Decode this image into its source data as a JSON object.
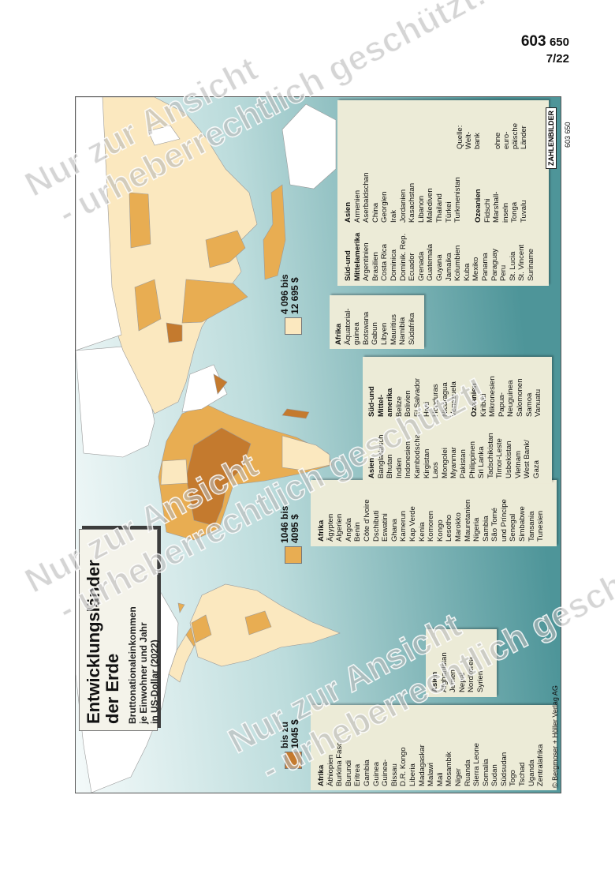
{
  "header": {
    "number": "603",
    "number_suffix": "650",
    "issue": "7/22"
  },
  "title": "Entwicklungsländer der Erde",
  "subtitle": "Bruttonationaleinkommen\nje Einwohner und Jahr\nin US-Dollar (2022)",
  "groups": [
    {
      "label": "bis zu\n1045 $",
      "color": "#c47a2e",
      "sections": [
        {
          "heading": "Afrika",
          "items": [
            "Äthiopien",
            "Burkina Faso",
            "Burundi",
            "Eritrea",
            "Gambia",
            "Guinea",
            "Guinea-\nBissau",
            "D.R. Kongo",
            "Liberia",
            "Madagaskar",
            "Malawi",
            "Mali",
            "Mosambik",
            "Niger",
            "Ruanda",
            "Sierra Leone",
            "Somalia",
            "Sudan",
            "Südsudan",
            "Togo",
            "Tschad",
            "Uganda",
            "Zentralafrika"
          ]
        },
        {
          "heading": "Asien",
          "items": [
            "Afghanistan",
            "Jemen",
            "Nepal",
            "Nordkorea",
            "Syrien"
          ]
        }
      ]
    },
    {
      "label": "1046 bis\n4095 $",
      "color": "#e8ad52",
      "sections": [
        {
          "heading": "Afrika",
          "items": [
            "Ägypten",
            "Algerien",
            "Angola",
            "Benin",
            "Côte d'Ivoire",
            "Dschibuti",
            "Eswatini",
            "Ghana",
            "Kamerun",
            "Kap Verde",
            "Kenia",
            "Komoren",
            "Kongo",
            "Lesotho",
            "Marokko",
            "Mauretanien",
            "Nigeria",
            "Sambia",
            "São Tomé\nund Príncipe",
            "Senegal",
            "Simbabwe",
            "Tansania",
            "Tunesien"
          ]
        },
        {
          "heading": "Asien",
          "items": [
            "Bangladesch",
            "Bhutan",
            "Indien",
            "Indonesien",
            "Kambodscha",
            "Kirgistan",
            "Laos",
            "Mongolei",
            "Myanmar",
            "Pakistan",
            "Philippinen",
            "Sri Lanka",
            "Tadschikistan",
            "Timor-Leste",
            "Usbekistan",
            "Vietnam",
            "West Bank/\nGaza"
          ]
        },
        {
          "heading": "Süd-und\nMittel-\namerika",
          "items": [
            "Belize",
            "Bolivien",
            "El Salvador",
            "Haiti",
            "Honduras",
            "Nicaragua",
            "Venezuela"
          ]
        },
        {
          "heading": "Ozeanien",
          "items": [
            "Kiribati",
            "Mikronesien",
            "Papua-\nNeuguinea",
            "Salomonen",
            "Samoa",
            "Vanuatu"
          ]
        }
      ]
    },
    {
      "label": "4 096 bis\n12 695 $",
      "color": "#fbe8bf",
      "sections": [
        {
          "heading": "Afrika",
          "items": [
            "Äquatorial-\nguinea",
            "Botswana",
            "Gabun",
            "Libyen",
            "Mauritius",
            "Namibia",
            "Südafrika"
          ]
        },
        {
          "heading": "Süd-und\nMittelamerika",
          "items": [
            "Argentinien",
            "Brasilien",
            "Costa Rica",
            "Dominica",
            "Dominik. Rep.",
            "Ecuador",
            "Grenada",
            "Guatemala",
            "Guyana",
            "Jamaika",
            "Kolumbien",
            "Kuba",
            "Mexiko",
            "Panama",
            "Paraguay",
            "Peru",
            "St. Lucia",
            "St. Vincent",
            "Suriname"
          ]
        },
        {
          "heading": "Asien",
          "items": [
            "Armenien",
            "Aserbaidschan",
            "China",
            "Georgien",
            "Irak",
            "Jordanien",
            "Kasachstan",
            "Libanon",
            "Malediven",
            "Thailand",
            "Türkei",
            "Turkmenistan"
          ]
        },
        {
          "heading": "Ozeanien",
          "items": [
            "Fidschi",
            "Marshall-\ninseln",
            "Tonga",
            "Tuvalu"
          ]
        }
      ]
    }
  ],
  "source": "Quelle:\nWelt-\nbank",
  "note": "ohne\neuro-\npäische\nLänder",
  "brand": "ZAHLENBILDER",
  "brand_number": "603 650",
  "copyright": "© Bergmoser + Höller Verlag AG",
  "watermark": {
    "line1": "Nur zur Ansicht",
    "line2": "- urheberrechtlich geschützt!"
  }
}
